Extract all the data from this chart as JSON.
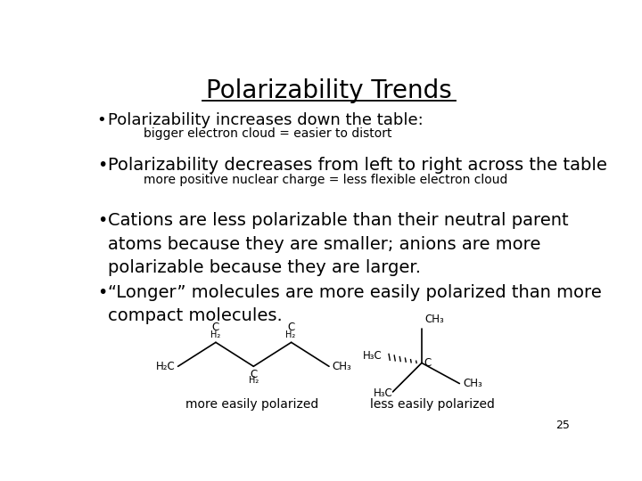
{
  "title": "Polarizability Trends",
  "background_color": "#ffffff",
  "text_color": "#000000",
  "title_fontsize": 20,
  "bullet1_main": "Polarizability increases down the table:",
  "bullet1_sub": "bigger electron cloud = easier to distort",
  "bullet2_main": "Polarizability decreases from left to right across the table",
  "bullet2_sub": "more positive nuclear charge = less flexible electron cloud",
  "bullet3_main": "Cations are less polarizable than their neutral parent\natoms because they are smaller; anions are more\npolarizable because they are larger.",
  "bullet4_main": "“Longer” molecules are more easily polarized than more\ncompact molecules.",
  "label_left": "more easily polarized",
  "label_right": "less easily polarized",
  "page_number": "25",
  "main_fontsize": 13,
  "sub_fontsize": 10
}
